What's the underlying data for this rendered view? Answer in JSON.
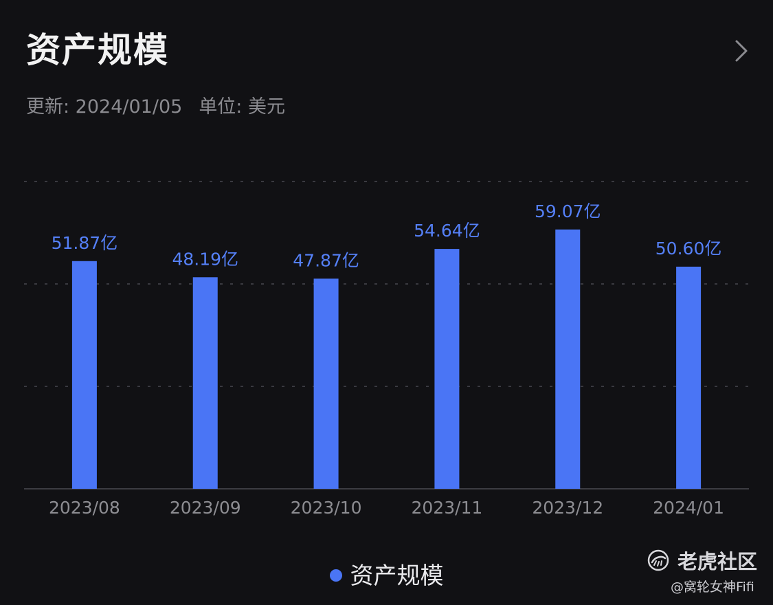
{
  "header": {
    "title": "资产规模",
    "update_text": "更新: 2024/01/05",
    "unit_text": "单位: 美元"
  },
  "colors": {
    "background": "#111114",
    "bar": "#4a75f5",
    "value_label": "#5580f7",
    "tick_label": "#8d8d92",
    "grid": "#3a3a40"
  },
  "chart_data": {
    "type": "bar",
    "title": "资产规模",
    "categories": [
      "2023/08",
      "2023/09",
      "2023/10",
      "2023/11",
      "2023/12",
      "2024/01"
    ],
    "series": [
      {
        "name": "资产规模",
        "values": [
          51.87,
          48.19,
          47.87,
          54.64,
          59.07,
          50.6
        ],
        "labels": [
          "51.87亿",
          "48.19亿",
          "47.87亿",
          "54.64亿",
          "59.07亿",
          "50.60亿"
        ]
      }
    ],
    "unit": "亿",
    "xlabel": "",
    "ylabel": "",
    "ylim": [
      0,
      70
    ],
    "grid": true,
    "legend_position": "bottom-center"
  },
  "legend": {
    "label": "资产规模"
  },
  "watermark": {
    "brand": "老虎社区",
    "user": "@窝轮女神Fifi",
    "logo_icon": "tiger-logo-icon"
  },
  "icons": {
    "more": "chevron-right-icon"
  }
}
